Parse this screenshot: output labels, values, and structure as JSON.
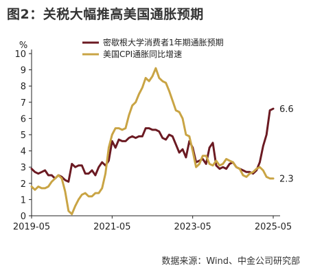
{
  "figure": {
    "title": "图2：关税大幅推高美国通胀预期",
    "source": "数据来源：Wind、中金公司研究部"
  },
  "colors": {
    "series1": "#6b1a22",
    "series2": "#c9a444",
    "axis": "#222222"
  },
  "chart_data": {
    "type": "line",
    "ylabel": "%",
    "ylim": [
      0,
      10
    ],
    "yticks": [
      0,
      1,
      2,
      3,
      4,
      5,
      6,
      7,
      8,
      9,
      10
    ],
    "xlim": [
      "2019-05",
      "2025-05"
    ],
    "xticks": [
      "2019-05",
      "2021-05",
      "2023-05",
      "2025-05"
    ],
    "grid": false,
    "legend_position": "top-center",
    "series": [
      {
        "name": "密歇根大学消费者1年期通胀预期",
        "x": [
          "2019-05",
          "2019-06",
          "2019-07",
          "2019-08",
          "2019-09",
          "2019-10",
          "2019-11",
          "2019-12",
          "2020-01",
          "2020-02",
          "2020-03",
          "2020-04",
          "2020-05",
          "2020-06",
          "2020-07",
          "2020-08",
          "2020-09",
          "2020-10",
          "2020-11",
          "2020-12",
          "2021-01",
          "2021-02",
          "2021-03",
          "2021-04",
          "2021-05",
          "2021-06",
          "2021-07",
          "2021-08",
          "2021-09",
          "2021-10",
          "2021-11",
          "2021-12",
          "2022-01",
          "2022-02",
          "2022-03",
          "2022-04",
          "2022-05",
          "2022-06",
          "2022-07",
          "2022-08",
          "2022-09",
          "2022-10",
          "2022-11",
          "2022-12",
          "2023-01",
          "2023-02",
          "2023-03",
          "2023-04",
          "2023-05",
          "2023-06",
          "2023-07",
          "2023-08",
          "2023-09",
          "2023-10",
          "2023-11",
          "2023-12",
          "2024-01",
          "2024-02",
          "2024-03",
          "2024-04",
          "2024-05",
          "2024-06",
          "2024-07",
          "2024-08",
          "2024-09",
          "2024-10",
          "2024-11",
          "2024-12",
          "2025-01",
          "2025-02",
          "2025-03",
          "2025-04",
          "2025-05"
        ],
        "values": [
          2.9,
          2.7,
          2.6,
          2.7,
          2.8,
          2.5,
          2.5,
          2.3,
          2.5,
          2.4,
          2.2,
          2.1,
          3.2,
          3.0,
          3.1,
          3.1,
          2.6,
          2.6,
          2.8,
          2.5,
          3.0,
          3.3,
          3.1,
          3.4,
          4.6,
          4.2,
          4.7,
          4.6,
          4.6,
          4.8,
          4.9,
          4.8,
          4.9,
          4.9,
          5.4,
          5.4,
          5.3,
          5.3,
          5.2,
          4.8,
          4.7,
          5.0,
          4.9,
          4.4,
          3.9,
          4.1,
          3.6,
          4.6,
          4.2,
          3.3,
          3.4,
          3.5,
          3.2,
          4.2,
          4.5,
          3.1,
          2.9,
          3.0,
          2.9,
          3.2,
          3.3,
          3.0,
          2.9,
          2.8,
          2.7,
          2.7,
          2.6,
          2.8,
          3.3,
          4.3,
          5.0,
          6.5,
          6.6
        ]
      },
      {
        "name": "美国CPI通胀同比增速",
        "x": [
          "2019-05",
          "2019-06",
          "2019-07",
          "2019-08",
          "2019-09",
          "2019-10",
          "2019-11",
          "2019-12",
          "2020-01",
          "2020-02",
          "2020-03",
          "2020-04",
          "2020-05",
          "2020-06",
          "2020-07",
          "2020-08",
          "2020-09",
          "2020-10",
          "2020-11",
          "2020-12",
          "2021-01",
          "2021-02",
          "2021-03",
          "2021-04",
          "2021-05",
          "2021-06",
          "2021-07",
          "2021-08",
          "2021-09",
          "2021-10",
          "2021-11",
          "2021-12",
          "2022-01",
          "2022-02",
          "2022-03",
          "2022-04",
          "2022-05",
          "2022-06",
          "2022-07",
          "2022-08",
          "2022-09",
          "2022-10",
          "2022-11",
          "2022-12",
          "2023-01",
          "2023-02",
          "2023-03",
          "2023-04",
          "2023-05",
          "2023-06",
          "2023-07",
          "2023-08",
          "2023-09",
          "2023-10",
          "2023-11",
          "2023-12",
          "2024-01",
          "2024-02",
          "2024-03",
          "2024-04",
          "2024-05",
          "2024-06",
          "2024-07",
          "2024-08",
          "2024-09",
          "2024-10",
          "2024-11",
          "2024-12",
          "2025-01",
          "2025-02",
          "2025-03",
          "2025-04",
          "2025-05"
        ],
        "values": [
          1.8,
          1.6,
          1.8,
          1.7,
          1.7,
          1.8,
          2.1,
          2.3,
          2.5,
          2.3,
          1.5,
          0.3,
          0.1,
          0.6,
          1.0,
          1.3,
          1.4,
          1.2,
          1.2,
          1.4,
          1.4,
          1.7,
          2.6,
          4.2,
          5.0,
          5.4,
          5.4,
          5.3,
          5.4,
          6.2,
          6.8,
          7.0,
          7.5,
          7.9,
          8.5,
          8.3,
          8.6,
          9.1,
          8.5,
          8.3,
          8.2,
          7.7,
          7.1,
          6.5,
          6.4,
          6.0,
          5.0,
          4.9,
          4.0,
          3.0,
          3.2,
          3.7,
          3.7,
          3.2,
          3.1,
          3.4,
          3.1,
          3.2,
          3.5,
          3.4,
          3.3,
          3.0,
          2.9,
          2.5,
          2.4,
          2.6,
          2.7,
          2.9,
          3.0,
          2.8,
          2.4,
          2.3,
          2.3
        ]
      }
    ],
    "end_labels": [
      "6.6",
      "2.3"
    ]
  }
}
